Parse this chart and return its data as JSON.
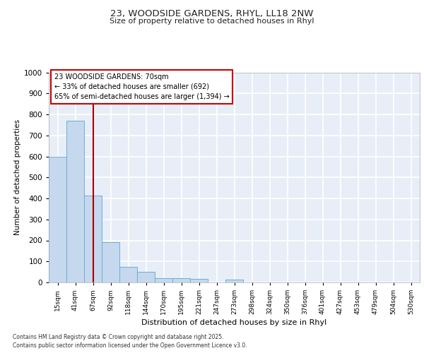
{
  "title_line1": "23, WOODSIDE GARDENS, RHYL, LL18 2NW",
  "title_line2": "Size of property relative to detached houses in Rhyl",
  "xlabel": "Distribution of detached houses by size in Rhyl",
  "ylabel": "Number of detached properties",
  "bin_labels": [
    "15sqm",
    "41sqm",
    "67sqm",
    "92sqm",
    "118sqm",
    "144sqm",
    "170sqm",
    "195sqm",
    "221sqm",
    "247sqm",
    "273sqm",
    "298sqm",
    "324sqm",
    "350sqm",
    "376sqm",
    "401sqm",
    "427sqm",
    "453sqm",
    "479sqm",
    "504sqm",
    "530sqm"
  ],
  "bar_values": [
    600,
    770,
    415,
    190,
    75,
    50,
    20,
    20,
    18,
    0,
    15,
    0,
    0,
    0,
    0,
    0,
    0,
    0,
    0,
    0,
    0
  ],
  "bar_color": "#c5d8ed",
  "bar_edge_color": "#6aaed6",
  "background_color": "#e8eef7",
  "grid_color": "#ffffff",
  "red_line_x": 2.0,
  "annotation_text": "23 WOODSIDE GARDENS: 70sqm\n← 33% of detached houses are smaller (692)\n65% of semi-detached houses are larger (1,394) →",
  "annotation_box_color": "#ffffff",
  "annotation_box_edge": "#cc0000",
  "ylim": [
    0,
    1000
  ],
  "yticks": [
    0,
    100,
    200,
    300,
    400,
    500,
    600,
    700,
    800,
    900,
    1000
  ],
  "footer_line1": "Contains HM Land Registry data © Crown copyright and database right 2025.",
  "footer_line2": "Contains public sector information licensed under the Open Government Licence v3.0."
}
